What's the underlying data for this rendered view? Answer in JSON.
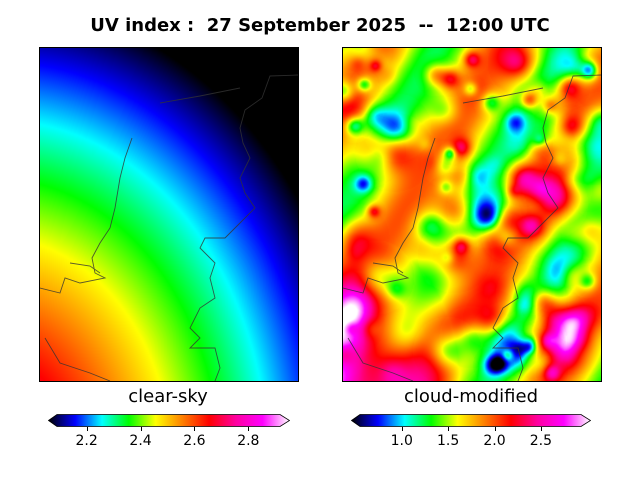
{
  "title": "UV index :  27 September 2025  --  12:00 UTC",
  "panels": [
    {
      "label": "clear-sky",
      "colorbar": {
        "range": [
          2.09,
          2.91
        ],
        "ticks": [
          "2.2",
          "2.4",
          "2.6",
          "2.8"
        ],
        "tick_values": [
          2.2,
          2.4,
          2.6,
          2.8
        ],
        "extend": "both"
      }
    },
    {
      "label": "cloud-modified",
      "colorbar": {
        "range": [
          0.55,
          2.9
        ],
        "ticks": [
          "1.0",
          "1.5",
          "2.0",
          "2.5"
        ],
        "tick_values": [
          1.0,
          1.5,
          2.0,
          2.5
        ],
        "extend": "both"
      }
    }
  ],
  "colormap": [
    "#000000",
    "#0000ff",
    "#00ffff",
    "#00ff00",
    "#ffff00",
    "#ff8000",
    "#ff0000",
    "#ff00a0",
    "#ff00ff",
    "#ffffff"
  ]
}
